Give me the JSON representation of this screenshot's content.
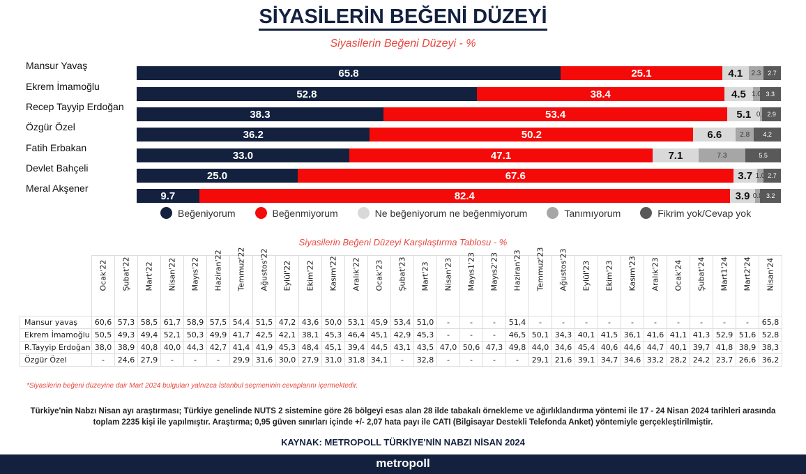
{
  "title": "SİYASİLERİN BEĞENİ DÜZEYİ",
  "chart_data": {
    "type": "bar",
    "title": "Siyasilerin Beğeni Düzeyi - %",
    "orientation": "horizontal-stacked",
    "categories": [
      "Mansur Yavaş",
      "Ekrem İmamoğlu",
      "Recep Tayyip Erdoğan",
      "Özgür Özel",
      "Fatih Erbakan",
      "Devlet Bahçeli",
      "Meral Akşener"
    ],
    "series": [
      {
        "name": "Beğeniyorum",
        "color": "#13213f",
        "values": [
          65.8,
          52.8,
          38.3,
          36.2,
          33.0,
          25.0,
          9.7
        ]
      },
      {
        "name": "Beğenmiyorum",
        "color": "#f50a0a",
        "values": [
          25.1,
          38.4,
          53.4,
          50.2,
          47.1,
          67.6,
          82.4
        ]
      },
      {
        "name": "Ne beğeniyorum ne beğenmiyorum",
        "color": "#d9d9d9",
        "values": [
          4.1,
          4.5,
          5.1,
          6.6,
          7.1,
          3.7,
          3.9
        ]
      },
      {
        "name": "Tanımıyorum",
        "color": "#a6a6a6",
        "values": [
          2.3,
          1.0,
          0.3,
          2.8,
          7.3,
          1.0,
          0.8
        ]
      },
      {
        "name": "Fikrim yok/Cevap yok",
        "color": "#595959",
        "values": [
          2.7,
          3.3,
          2.9,
          4.2,
          5.5,
          2.7,
          3.2
        ]
      }
    ],
    "legend": "bottom"
  },
  "table": {
    "title": "Siyasilerin Beğeni Düzeyi Karşılaştırma Tablosu - %",
    "columns": [
      "Ocak'22",
      "Şubat'22",
      "Mart'22",
      "Nisan'22",
      "Mayıs'22",
      "Haziran'22",
      "Temmuz'22",
      "Ağustos'22",
      "Eylül'22",
      "Ekim'22",
      "Kasım'22",
      "Aralık'22",
      "Ocak'23",
      "Şubat'23",
      "Mart'23",
      "Nisan'23",
      "Mayıs1'23",
      "Mayıs2'23",
      "Haziran'23",
      "Temmuz'23",
      "Ağustos'23",
      "Eylül'23",
      "Ekim'23",
      "Kasım'23",
      "Aralık'23",
      "Ocak'24",
      "Şubat'24",
      "Mart1'24",
      "Mart2'24",
      "Nisan'24"
    ],
    "rows": [
      {
        "name": "Mansur yavaş",
        "values": [
          "60,6",
          "57,3",
          "58,5",
          "61,7",
          "58,9",
          "57,5",
          "54,4",
          "51,5",
          "47,2",
          "43,6",
          "50,0",
          "53,1",
          "45,9",
          "53,4",
          "51,0",
          "-",
          "-",
          "-",
          "51,4",
          "-",
          "-",
          "-",
          "-",
          "-",
          "-",
          "-",
          "-",
          "-",
          "-",
          "65,8"
        ]
      },
      {
        "name": "Ekrem İmamoğlu",
        "values": [
          "50,5",
          "49,3",
          "49,4",
          "52,1",
          "50,3",
          "49,9",
          "41,7",
          "42,5",
          "42,1",
          "38,1",
          "45,3",
          "46,4",
          "45,1",
          "42,9",
          "45,3",
          "-",
          "-",
          "-",
          "46,5",
          "50,1",
          "34,3",
          "40,1",
          "41,5",
          "36,1",
          "41,6",
          "41,1",
          "41,3",
          "52,9",
          "51,6",
          "52,8"
        ]
      },
      {
        "name": "R.Tayyip Erdoğan",
        "values": [
          "38,0",
          "38,9",
          "40,8",
          "40,0",
          "44,3",
          "42,7",
          "41,4",
          "41,9",
          "45,3",
          "48,4",
          "45,1",
          "39,4",
          "44,5",
          "43,1",
          "43,5",
          "47,0",
          "50,6",
          "47,3",
          "49,8",
          "44,0",
          "34,6",
          "45,4",
          "40,6",
          "44,6",
          "44,7",
          "40,1",
          "39,7",
          "41,8",
          "38,9",
          "38,3"
        ]
      },
      {
        "name": "Özgür Özel",
        "values": [
          "-",
          "24,6",
          "27,9",
          "-",
          "-",
          "-",
          "29,9",
          "31,6",
          "30,0",
          "27,9",
          "31,0",
          "31,8",
          "34,1",
          "-",
          "32,8",
          "-",
          "-",
          "-",
          "-",
          "29,1",
          "21,6",
          "39,1",
          "34,7",
          "34,6",
          "33,2",
          "28,2",
          "24,2",
          "23,7",
          "26,6",
          "36,2"
        ]
      }
    ]
  },
  "note": "*Siyasilerin beğeni düzeyine dair Mart 2024 bulguları yalnızca İstanbul seçmeninin cevaplarını içermektedir.",
  "methodology": "Türkiye'nin Nabzı Nisan ayı araştırması; Türkiye genelinde NUTS 2 sistemine göre 26 bölgeyi esas alan 28 ilde tabakalı örnekleme ve ağırlıklandırma yöntemi ile 17 - 24 Nisan 2024 tarihleri arasında toplam 2235 kişi ile yapılmıştır. Araştırma; 0,95 güven sınırları içinde +/- 2,07 hata payı ile CATI (Bilgisayar Destekli Telefonda Anket) yöntemiyle gerçekleştirilmiştir.",
  "source": "KAYNAK: METROPOLL TÜRKİYE'NİN NABZI NİSAN 2024",
  "footer_logo": "metropoll"
}
